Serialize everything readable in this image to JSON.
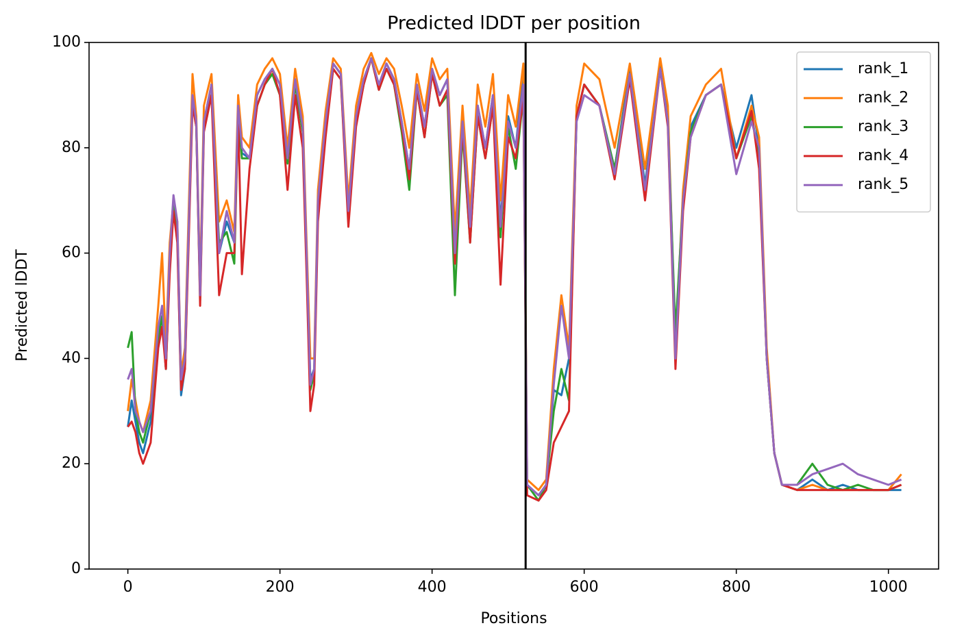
{
  "chart_data": {
    "type": "line",
    "title": "Predicted lDDT per position",
    "xlabel": "Positions",
    "ylabel": "Predicted lDDT",
    "x": [
      0,
      5,
      10,
      15,
      20,
      30,
      40,
      45,
      50,
      55,
      60,
      65,
      70,
      75,
      80,
      85,
      90,
      95,
      100,
      110,
      120,
      130,
      140,
      145,
      150,
      160,
      170,
      180,
      190,
      200,
      210,
      220,
      230,
      235,
      240,
      245,
      250,
      260,
      270,
      280,
      290,
      300,
      310,
      320,
      330,
      340,
      350,
      360,
      370,
      380,
      390,
      400,
      410,
      420,
      430,
      440,
      450,
      460,
      470,
      480,
      490,
      500,
      510,
      520,
      525,
      540,
      550,
      560,
      570,
      580,
      590,
      600,
      620,
      640,
      660,
      680,
      700,
      710,
      720,
      730,
      740,
      760,
      780,
      800,
      820,
      830,
      840,
      850,
      860,
      880,
      900,
      920,
      940,
      960,
      980,
      1000,
      1017
    ],
    "series": [
      {
        "name": "rank_1",
        "color": "#1f77b4",
        "values": [
          27,
          32,
          28,
          24,
          22,
          28,
          44,
          48,
          38,
          58,
          70,
          64,
          33,
          38,
          64,
          90,
          84,
          52,
          85,
          92,
          60,
          66,
          62,
          88,
          79,
          78,
          90,
          93,
          95,
          92,
          78,
          93,
          84,
          60,
          36,
          38,
          70,
          85,
          96,
          94,
          68,
          86,
          93,
          97,
          92,
          96,
          93,
          85,
          76,
          92,
          84,
          95,
          90,
          93,
          58,
          85,
          65,
          88,
          80,
          90,
          66,
          86,
          80,
          95,
          16,
          14,
          16,
          34,
          33,
          40,
          86,
          92,
          88,
          76,
          95,
          73,
          96,
          86,
          42,
          70,
          84,
          90,
          92,
          80,
          90,
          80,
          40,
          22,
          16,
          15,
          17,
          15,
          16,
          15,
          15,
          15,
          15
        ]
      },
      {
        "name": "rank_2",
        "color": "#ff7f0e",
        "values": [
          30,
          36,
          32,
          28,
          26,
          32,
          50,
          60,
          42,
          62,
          70,
          66,
          37,
          42,
          68,
          94,
          86,
          54,
          88,
          94,
          66,
          70,
          64,
          90,
          82,
          80,
          92,
          95,
          97,
          94,
          80,
          95,
          86,
          62,
          40,
          40,
          72,
          87,
          97,
          95,
          70,
          88,
          95,
          98,
          94,
          97,
          95,
          88,
          80,
          94,
          87,
          97,
          93,
          95,
          64,
          88,
          68,
          92,
          84,
          94,
          70,
          90,
          84,
          96,
          17,
          15,
          17,
          38,
          52,
          42,
          88,
          96,
          93,
          80,
          96,
          76,
          97,
          88,
          42,
          72,
          86,
          92,
          95,
          78,
          88,
          82,
          42,
          22,
          16,
          15,
          16,
          15,
          15,
          15,
          15,
          15,
          18
        ]
      },
      {
        "name": "rank_3",
        "color": "#2ca02c",
        "values": [
          42,
          45,
          30,
          26,
          24,
          30,
          44,
          48,
          38,
          58,
          70,
          64,
          36,
          40,
          64,
          89,
          84,
          51,
          84,
          90,
          62,
          64,
          58,
          86,
          78,
          78,
          88,
          92,
          94,
          90,
          77,
          92,
          83,
          58,
          34,
          37,
          68,
          84,
          95,
          93,
          67,
          85,
          92,
          97,
          91,
          95,
          92,
          83,
          72,
          91,
          82,
          94,
          88,
          90,
          52,
          83,
          62,
          86,
          78,
          88,
          63,
          84,
          76,
          90,
          16,
          13,
          16,
          30,
          38,
          32,
          86,
          92,
          88,
          76,
          94,
          72,
          95,
          85,
          45,
          70,
          83,
          90,
          92,
          78,
          86,
          78,
          40,
          22,
          16,
          16,
          20,
          16,
          15,
          16,
          15,
          15,
          16
        ]
      },
      {
        "name": "rank_4",
        "color": "#d62728",
        "values": [
          27,
          28,
          26,
          22,
          20,
          24,
          42,
          46,
          38,
          56,
          68,
          62,
          34,
          38,
          62,
          88,
          84,
          50,
          83,
          90,
          52,
          60,
          60,
          86,
          56,
          76,
          88,
          92,
          95,
          90,
          72,
          90,
          80,
          56,
          30,
          35,
          66,
          82,
          95,
          93,
          65,
          84,
          92,
          97,
          91,
          95,
          92,
          84,
          74,
          91,
          82,
          94,
          88,
          91,
          58,
          84,
          62,
          86,
          78,
          88,
          54,
          82,
          78,
          90,
          14,
          13,
          15,
          24,
          27,
          30,
          86,
          92,
          88,
          74,
          93,
          70,
          95,
          84,
          38,
          68,
          82,
          90,
          92,
          78,
          87,
          76,
          40,
          22,
          16,
          15,
          15,
          15,
          15,
          15,
          15,
          15,
          16
        ]
      },
      {
        "name": "rank_5",
        "color": "#9467bd",
        "values": [
          36,
          38,
          30,
          28,
          26,
          30,
          46,
          50,
          40,
          60,
          71,
          66,
          36,
          40,
          65,
          90,
          85,
          52,
          85,
          92,
          60,
          68,
          62,
          88,
          80,
          78,
          90,
          93,
          95,
          92,
          78,
          93,
          84,
          60,
          35,
          38,
          70,
          85,
          96,
          94,
          68,
          86,
          93,
          97,
          92,
          96,
          93,
          85,
          76,
          92,
          84,
          95,
          90,
          93,
          60,
          85,
          65,
          88,
          80,
          90,
          65,
          85,
          80,
          92,
          16,
          14,
          16,
          35,
          50,
          40,
          85,
          90,
          88,
          75,
          94,
          72,
          95,
          85,
          40,
          70,
          82,
          90,
          92,
          75,
          85,
          80,
          40,
          22,
          16,
          16,
          18,
          19,
          20,
          18,
          17,
          16,
          17
        ]
      }
    ],
    "vline": 523,
    "xlim": [
      -51,
      1066
    ],
    "ylim": [
      0,
      100
    ],
    "xticks": [
      0,
      200,
      400,
      600,
      800,
      1000
    ],
    "yticks": [
      0,
      20,
      40,
      60,
      80,
      100
    ],
    "legend": "upper right"
  }
}
